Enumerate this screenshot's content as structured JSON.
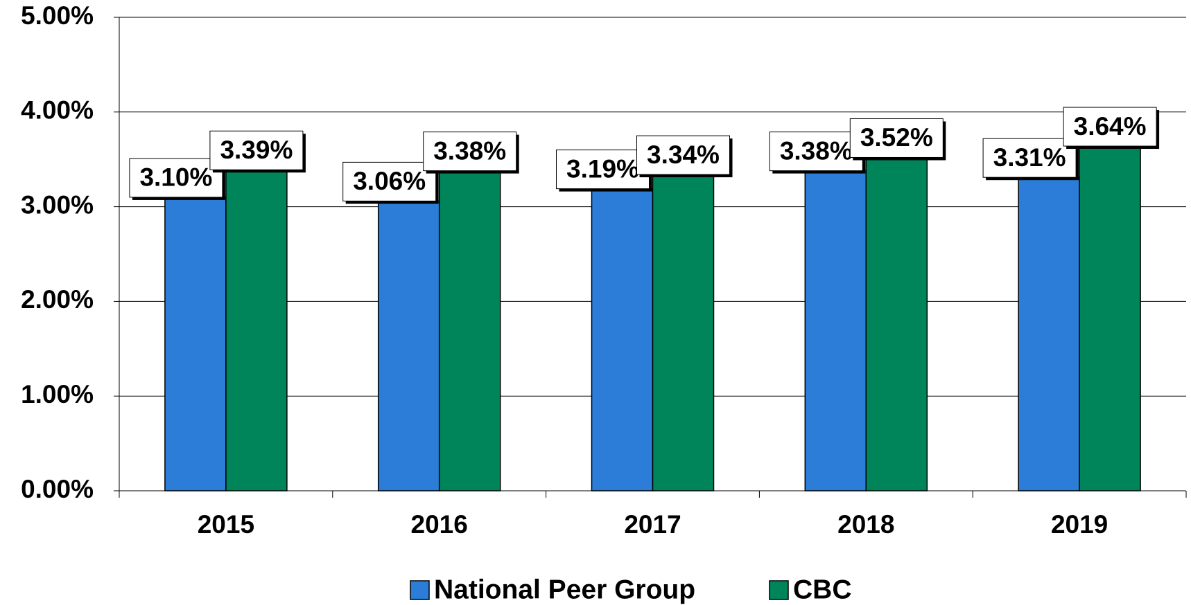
{
  "chart_data": {
    "type": "bar",
    "categories": [
      "2015",
      "2016",
      "2017",
      "2018",
      "2019"
    ],
    "series": [
      {
        "name": "National Peer Group",
        "color": "#2b7dd8",
        "values": [
          3.1,
          3.06,
          3.19,
          3.38,
          3.31
        ],
        "value_labels": [
          "3.10%",
          "3.06%",
          "3.19%",
          "3.38%",
          "3.31%"
        ]
      },
      {
        "name": "CBC",
        "color": "#00855a",
        "values": [
          3.39,
          3.38,
          3.34,
          3.52,
          3.64
        ],
        "value_labels": [
          "3.39%",
          "3.38%",
          "3.34%",
          "3.52%",
          "3.64%"
        ]
      }
    ],
    "ylim": [
      0,
      5
    ],
    "yticks": [
      {
        "value": 0,
        "label": "0.00%"
      },
      {
        "value": 1,
        "label": "1.00%"
      },
      {
        "value": 2,
        "label": "2.00%"
      },
      {
        "value": 3,
        "label": "3.00%"
      },
      {
        "value": 4,
        "label": "4.00%"
      },
      {
        "value": 5,
        "label": "5.00%"
      }
    ],
    "grid": true,
    "legend": "bottom"
  }
}
